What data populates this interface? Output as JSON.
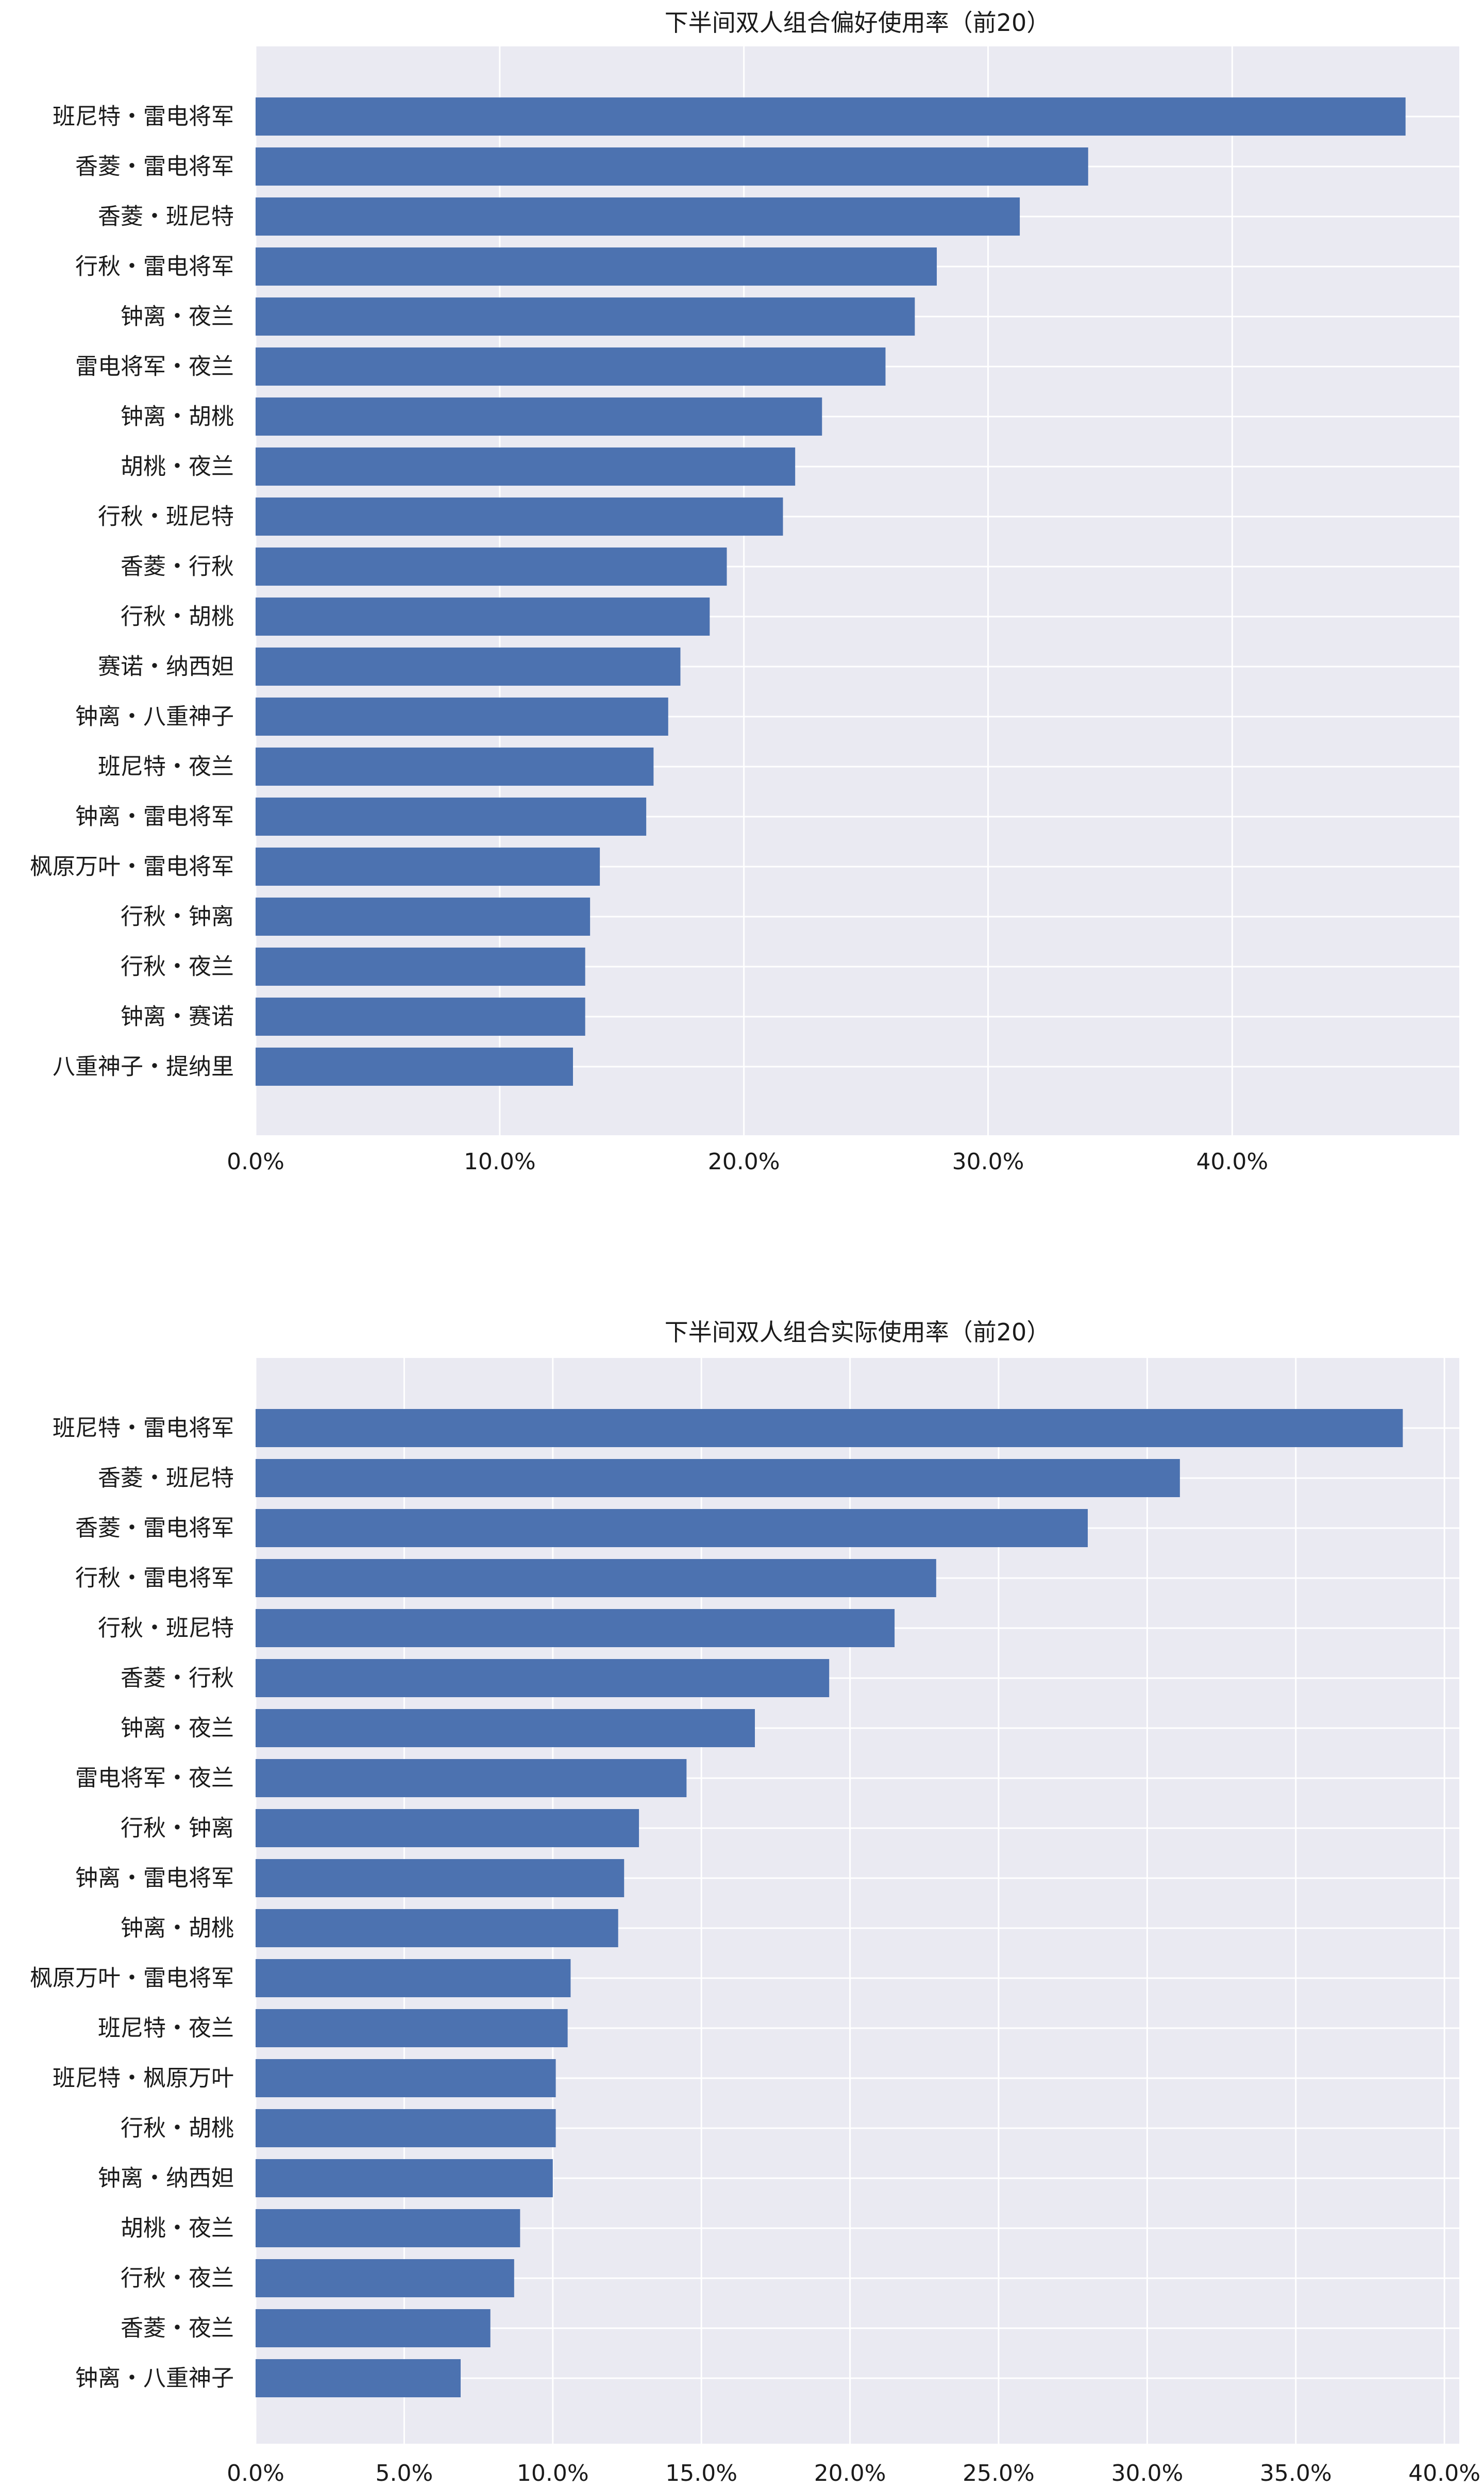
{
  "chart_data": [
    {
      "type": "bar",
      "orientation": "horizontal",
      "title": "下半间双人组合偏好使用率（前20）",
      "xlabel": "",
      "ylabel": "",
      "xlim": [
        0,
        49.3
      ],
      "xticks": [
        0,
        10,
        20,
        30,
        40
      ],
      "xtick_labels": [
        "0.0%",
        "10.0%",
        "20.0%",
        "30.0%",
        "40.0%"
      ],
      "grid": true,
      "bar_color": "#4c72b0",
      "background": "#eaeaf2",
      "categories": [
        "班尼特・雷电将军",
        "香菱・雷电将军",
        "香菱・班尼特",
        "行秋・雷电将军",
        "钟离・夜兰",
        "雷电将军・夜兰",
        "钟离・胡桃",
        "胡桃・夜兰",
        "行秋・班尼特",
        "香菱・行秋",
        "行秋・胡桃",
        "赛诺・纳西妲",
        "钟离・八重神子",
        "班尼特・夜兰",
        "钟离・雷电将军",
        "枫原万叶・雷电将军",
        "行秋・钟离",
        "行秋・夜兰",
        "钟离・赛诺",
        "八重神子・提纳里"
      ],
      "values": [
        47.1,
        34.1,
        31.3,
        27.9,
        27.0,
        25.8,
        23.2,
        22.1,
        21.6,
        19.3,
        18.6,
        17.4,
        16.9,
        16.3,
        16.0,
        14.1,
        13.7,
        13.5,
        13.5,
        13.0
      ]
    },
    {
      "type": "bar",
      "orientation": "horizontal",
      "title": "下半间双人组合实际使用率（前20）",
      "xlabel": "",
      "ylabel": "",
      "xlim": [
        0,
        40.5
      ],
      "xticks": [
        0,
        5,
        10,
        15,
        20,
        25,
        30,
        35,
        40
      ],
      "xtick_labels": [
        "0.0%",
        "5.0%",
        "10.0%",
        "15.0%",
        "20.0%",
        "25.0%",
        "30.0%",
        "35.0%",
        "40.0%"
      ],
      "grid": true,
      "bar_color": "#4c72b0",
      "background": "#eaeaf2",
      "categories": [
        "班尼特・雷电将军",
        "香菱・班尼特",
        "香菱・雷电将军",
        "行秋・雷电将军",
        "行秋・班尼特",
        "香菱・行秋",
        "钟离・夜兰",
        "雷电将军・夜兰",
        "行秋・钟离",
        "钟离・雷电将军",
        "钟离・胡桃",
        "枫原万叶・雷电将军",
        "班尼特・夜兰",
        "班尼特・枫原万叶",
        "行秋・胡桃",
        "钟离・纳西妲",
        "胡桃・夜兰",
        "行秋・夜兰",
        "香菱・夜兰",
        "钟离・八重神子"
      ],
      "values": [
        38.6,
        31.1,
        28.0,
        22.9,
        21.5,
        19.3,
        16.8,
        14.5,
        12.9,
        12.4,
        12.2,
        10.6,
        10.5,
        10.1,
        10.1,
        10.0,
        8.9,
        8.7,
        7.9,
        6.9
      ]
    }
  ]
}
